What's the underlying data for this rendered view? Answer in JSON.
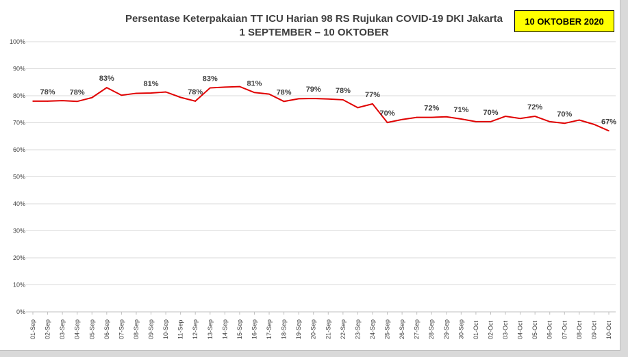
{
  "badge": "10 OKTOBER 2020",
  "chart_data": {
    "type": "line",
    "title": "Persentase Keterpakaian TT ICU Harian 98 RS Rujukan COVID-19 DKI Jakarta",
    "subtitle": "1 SEPTEMBER – 10 OKTOBER",
    "xlabel": "",
    "ylabel": "",
    "ylim": [
      0,
      100
    ],
    "yticks": [
      "0%",
      "10%",
      "20%",
      "30%",
      "40%",
      "50%",
      "60%",
      "70%",
      "80%",
      "90%",
      "100%"
    ],
    "grid": true,
    "color": "#e00000",
    "categories": [
      "01-Sep",
      "02-Sep",
      "03-Sep",
      "04-Sep",
      "05-Sep",
      "06-Sep",
      "07-Sep",
      "08-Sep",
      "09-Sep",
      "10-Sep",
      "11-Sep",
      "12-Sep",
      "13-Sep",
      "14-Sep",
      "15-Sep",
      "16-Sep",
      "17-Sep",
      "18-Sep",
      "19-Sep",
      "20-Sep",
      "21-Sep",
      "22-Sep",
      "23-Sep",
      "24-Sep",
      "25-Sep",
      "26-Sep",
      "27-Sep",
      "28-Sep",
      "29-Sep",
      "30-Sep",
      "01-Oct",
      "02-Oct",
      "03-Oct",
      "04-Oct",
      "05-Oct",
      "06-Oct",
      "07-Oct",
      "08-Oct",
      "09-Oct",
      "10-Oct"
    ],
    "values": [
      78,
      78,
      78.2,
      77.9,
      79.3,
      83,
      80.2,
      80.9,
      81,
      81.4,
      79.4,
      78,
      82.9,
      83.2,
      83.4,
      81.2,
      80.6,
      77.9,
      78.9,
      79,
      78.8,
      78.5,
      75.6,
      77,
      70.1,
      71.2,
      72,
      72,
      72.2,
      71.4,
      70.4,
      70.4,
      72.4,
      71.6,
      72.4,
      70.4,
      69.8,
      71,
      69.4,
      67
    ],
    "data_labels": [
      {
        "index": 1,
        "text": "78%"
      },
      {
        "index": 3,
        "text": "78%"
      },
      {
        "index": 5,
        "text": "83%"
      },
      {
        "index": 8,
        "text": "81%"
      },
      {
        "index": 11,
        "text": "78%"
      },
      {
        "index": 12,
        "text": "83%"
      },
      {
        "index": 15,
        "text": "81%"
      },
      {
        "index": 17,
        "text": "78%"
      },
      {
        "index": 19,
        "text": "79%"
      },
      {
        "index": 21,
        "text": "78%"
      },
      {
        "index": 23,
        "text": "77%"
      },
      {
        "index": 24,
        "text": "70%"
      },
      {
        "index": 27,
        "text": "72%"
      },
      {
        "index": 29,
        "text": "71%"
      },
      {
        "index": 31,
        "text": "70%"
      },
      {
        "index": 34,
        "text": "72%"
      },
      {
        "index": 36,
        "text": "70%"
      },
      {
        "index": 39,
        "text": "67%"
      }
    ]
  }
}
